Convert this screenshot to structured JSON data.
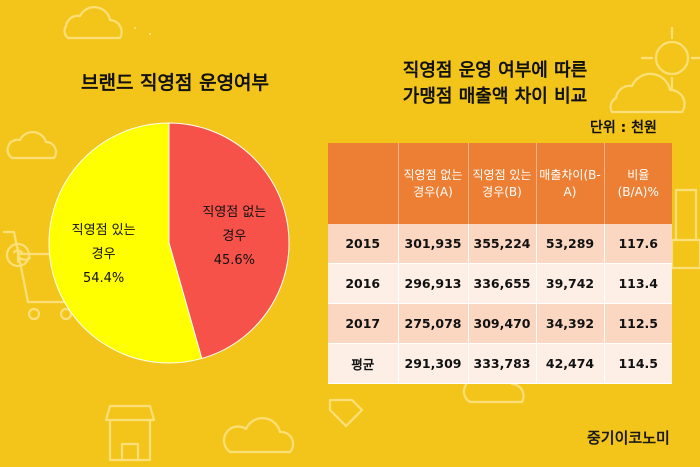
{
  "pie": {
    "title": "브랜드 직영점 운영여부",
    "slices": [
      {
        "label": "직영점 없는 경우",
        "value": 45.6,
        "value_label": "45.6%",
        "color": "#f7524a"
      },
      {
        "label": "직영점 있는 경우",
        "value": 54.4,
        "value_label": "54.4%",
        "color": "#ffff00"
      }
    ]
  },
  "table": {
    "title_line1": "직영점 운영 여부에 따른",
    "title_line2": "가맹점 매출액 차이 비교",
    "unit": "단위 : 천원",
    "columns": [
      "",
      "직영점 없는 경우(A)",
      "직영점 있는 경우(B)",
      "매출차이(B-A)",
      "비율 (B/A)%"
    ],
    "rows": [
      [
        "2015",
        "301,935",
        "355,224",
        "53,289",
        "117.6"
      ],
      [
        "2016",
        "296,913",
        "336,655",
        "39,742",
        "113.4"
      ],
      [
        "2017",
        "275,078",
        "309,470",
        "34,392",
        "112.5"
      ],
      [
        "평균",
        "291,309",
        "333,783",
        "42,474",
        "114.5"
      ]
    ]
  },
  "logo": "중기이코노미",
  "chart_data": {
    "type": "pie",
    "title": "브랜드 직영점 운영여부",
    "categories": [
      "직영점 없는 경우",
      "직영점 있는 경우"
    ],
    "values": [
      45.6,
      54.4
    ],
    "legend": "none"
  }
}
